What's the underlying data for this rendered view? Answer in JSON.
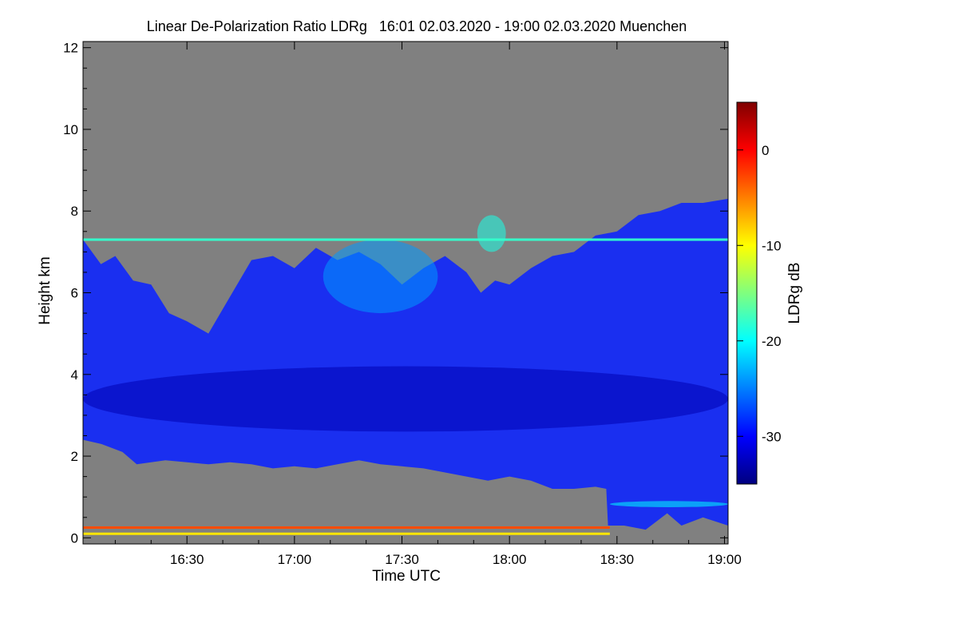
{
  "chart_data": {
    "type": "heatmap",
    "title": "Linear De-Polarization Ratio LDRg   16:01 02.03.2020 - 19:00 02.03.2020 Muenchen",
    "xlabel": "Time UTC",
    "ylabel": "Height km",
    "colorbar_label": "LDRg dB",
    "x_range_minutes_utc": [
      961,
      1141
    ],
    "y_range_km": [
      -0.15,
      12.15
    ],
    "x_ticks": [
      {
        "value": 990,
        "label": "16:30"
      },
      {
        "value": 1020,
        "label": "17:00"
      },
      {
        "value": 1050,
        "label": "17:30"
      },
      {
        "value": 1080,
        "label": "18:00"
      },
      {
        "value": 1110,
        "label": "18:30"
      },
      {
        "value": 1140,
        "label": "19:00"
      }
    ],
    "y_ticks": [
      {
        "value": 0,
        "label": "0"
      },
      {
        "value": 2,
        "label": "2"
      },
      {
        "value": 4,
        "label": "4"
      },
      {
        "value": 6,
        "label": "6"
      },
      {
        "value": 8,
        "label": "8"
      },
      {
        "value": 10,
        "label": "10"
      },
      {
        "value": 12,
        "label": "12"
      }
    ],
    "colorbar_range_db": [
      -35,
      5
    ],
    "colorbar_ticks": [
      {
        "value": 0,
        "label": "0"
      },
      {
        "value": -10,
        "label": "-10"
      },
      {
        "value": -20,
        "label": "-20"
      },
      {
        "value": -30,
        "label": "-30"
      }
    ],
    "no_signal_color": "#808080",
    "colormap": [
      "#00007f",
      "#0000ff",
      "#007fff",
      "#00ffff",
      "#7fff7f",
      "#ffff00",
      "#ff7f00",
      "#ff0000",
      "#7f0000"
    ],
    "cloud_regions": [
      {
        "name": "main-cirrus-layer",
        "ldr_db": -31,
        "color": "#1a2ff0",
        "top_km": [
          [
            961,
            7.3
          ],
          [
            966,
            6.7
          ],
          [
            970,
            6.9
          ],
          [
            975,
            6.3
          ],
          [
            980,
            6.2
          ],
          [
            985,
            5.5
          ],
          [
            990,
            5.3
          ],
          [
            996,
            5.0
          ],
          [
            1002,
            5.9
          ],
          [
            1008,
            6.8
          ],
          [
            1014,
            6.9
          ],
          [
            1020,
            6.6
          ],
          [
            1026,
            7.1
          ],
          [
            1032,
            6.8
          ],
          [
            1038,
            7.0
          ],
          [
            1044,
            6.7
          ],
          [
            1050,
            6.2
          ],
          [
            1056,
            6.6
          ],
          [
            1062,
            6.9
          ],
          [
            1068,
            6.5
          ],
          [
            1072,
            6.0
          ],
          [
            1076,
            6.3
          ],
          [
            1080,
            6.2
          ],
          [
            1086,
            6.6
          ],
          [
            1092,
            6.9
          ],
          [
            1098,
            7.0
          ],
          [
            1104,
            7.4
          ],
          [
            1110,
            7.5
          ],
          [
            1116,
            7.9
          ],
          [
            1122,
            8.0
          ],
          [
            1128,
            8.2
          ],
          [
            1134,
            8.2
          ],
          [
            1141,
            8.3
          ]
        ],
        "base_km": [
          [
            961,
            2.4
          ],
          [
            966,
            2.3
          ],
          [
            972,
            2.1
          ],
          [
            976,
            1.8
          ],
          [
            984,
            1.9
          ],
          [
            990,
            1.85
          ],
          [
            996,
            1.8
          ],
          [
            1002,
            1.85
          ],
          [
            1008,
            1.8
          ],
          [
            1014,
            1.7
          ],
          [
            1020,
            1.75
          ],
          [
            1026,
            1.7
          ],
          [
            1032,
            1.8
          ],
          [
            1038,
            1.9
          ],
          [
            1044,
            1.8
          ],
          [
            1050,
            1.75
          ],
          [
            1056,
            1.7
          ],
          [
            1062,
            1.6
          ],
          [
            1068,
            1.5
          ],
          [
            1074,
            1.4
          ],
          [
            1080,
            1.5
          ],
          [
            1086,
            1.4
          ],
          [
            1092,
            1.2
          ],
          [
            1098,
            1.2
          ],
          [
            1104,
            1.25
          ],
          [
            1107,
            1.2
          ],
          [
            1107.5,
            0.3
          ],
          [
            1112,
            0.3
          ],
          [
            1118,
            0.2
          ],
          [
            1124,
            0.6
          ],
          [
            1128,
            0.3
          ],
          [
            1134,
            0.5
          ],
          [
            1141,
            0.3
          ]
        ]
      }
    ],
    "embedded_features": [
      {
        "name": "mid-level-denser-core",
        "ldr_db": -33,
        "x_minutes": [
          961,
          1141
        ],
        "height_km": [
          2.6,
          4.2
        ]
      },
      {
        "name": "fall-streak-brighter",
        "ldr_db": -24,
        "x_minutes": [
          1028,
          1060
        ],
        "height_km": [
          5.5,
          7.3
        ]
      },
      {
        "name": "isolated-high-patch",
        "ldr_db": -19,
        "x_minutes": [
          1071,
          1079
        ],
        "height_km": [
          7.0,
          7.9
        ]
      },
      {
        "name": "low-cloud-top-after-1830",
        "ldr_db": -20,
        "x_minutes": [
          1108,
          1141
        ],
        "height_km": [
          0.75,
          0.9
        ]
      }
    ],
    "line_features": [
      {
        "name": "cirrus-top-artifact-line",
        "height_km": 7.3,
        "x_minutes": [
          961,
          1141
        ],
        "ldr_db": -18
      },
      {
        "name": "near-ground-artifact-line",
        "height_km": 0.25,
        "x_minutes": [
          961,
          1108
        ],
        "ldr_db": -3
      },
      {
        "name": "near-ground-artifact-line-2",
        "height_km": 0.1,
        "x_minutes": [
          961,
          1108
        ],
        "ldr_db": -9
      }
    ]
  }
}
